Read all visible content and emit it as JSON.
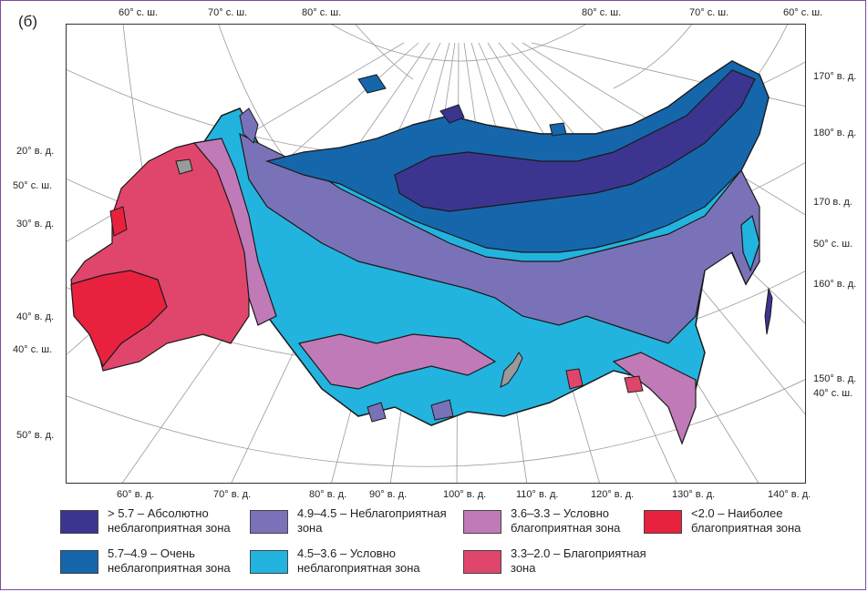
{
  "panel_label": "(б)",
  "coords": {
    "top": [
      "60° с. ш.",
      "70° с. ш.",
      "80° с. ш.",
      "80° с. ш.",
      "70° с. ш.",
      "60° с. ш."
    ],
    "left": [
      "20° в. д.",
      "50° с. ш.",
      "30° в. д.",
      "40° в. д.",
      "40° с. ш.",
      "50° в. д."
    ],
    "right": [
      "170° в. д.",
      "180° в. д.",
      "170  в. д.",
      "50° с. ш.",
      "160° в. д.",
      "150° в. д.",
      "40° с. ш."
    ],
    "bottom": [
      "60° в. д.",
      "70° в. д.",
      "80° в. д.",
      "90° в. д.",
      "100° в. д.",
      "110° в. д.",
      "120° в. д.",
      "130° в. д.",
      "140° в. д."
    ]
  },
  "zone_colors": {
    "absolutely_unfavorable": "#3c3590",
    "very_unfavorable": "#1666ab",
    "unfavorable": "#7a72b8",
    "conditionally_unfavorable": "#22b4df",
    "conditionally_favorable": "#c07ab8",
    "favorable": "#e0466b",
    "most_favorable": "#e8213f",
    "water": "#9a9a9a"
  },
  "legend": [
    {
      "text": "> 5.7 – Абсолютно\nнеблагоприятная зона",
      "color": "#3c3590"
    },
    {
      "text": "5.7–4.9 – Очень\nнеблагоприятная зона",
      "color": "#1666ab"
    },
    {
      "text": "4.9–4.5 – Неблагоприятная\nзона",
      "color": "#7a72b8"
    },
    {
      "text": "4.5–3.6 – Условно\nнеблагоприятная зона",
      "color": "#22b4df"
    },
    {
      "text": "3.6–3.3 – Условно\nблагоприятная зона",
      "color": "#c07ab8"
    },
    {
      "text": "3.3–2.0 – Благоприятная\nзона",
      "color": "#e0466b"
    },
    {
      "text": "<2.0 – Наиболее\nблагоприятная зона",
      "color": "#e8213f"
    }
  ]
}
